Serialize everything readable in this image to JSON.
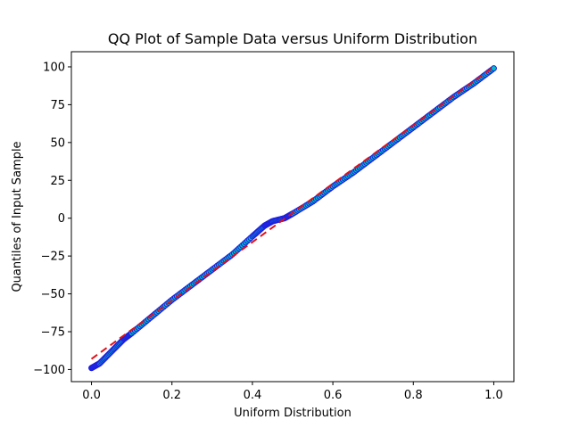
{
  "chart_data": {
    "type": "scatter",
    "title": "QQ Plot of Sample Data versus Uniform Distribution",
    "xlabel": "Uniform Distribution",
    "ylabel": "Quantiles of Input Sample",
    "xlim": [
      -0.05,
      1.05
    ],
    "ylim": [
      -108,
      110
    ],
    "xticks": [
      0.0,
      0.2,
      0.4,
      0.6,
      0.8,
      1.0
    ],
    "xtick_labels": [
      "0.0",
      "0.2",
      "0.4",
      "0.6",
      "0.8",
      "1.0"
    ],
    "yticks": [
      -100,
      -75,
      -50,
      -25,
      0,
      25,
      50,
      75,
      100
    ],
    "ytick_labels": [
      "−100",
      "−75",
      "−50",
      "−25",
      "0",
      "25",
      "50",
      "75",
      "100"
    ],
    "grid": false,
    "colors": {
      "marker_fill": "#00BFBF",
      "marker_edge": "#1f1fe0",
      "reference_line": "#e0101a"
    },
    "series": [
      {
        "kind": "points",
        "x": [
          0.0,
          0.02,
          0.05,
          0.08,
          0.1,
          0.15,
          0.2,
          0.25,
          0.3,
          0.35,
          0.4,
          0.43,
          0.45,
          0.48,
          0.5,
          0.55,
          0.6,
          0.65,
          0.7,
          0.75,
          0.8,
          0.85,
          0.9,
          0.95,
          1.0
        ],
        "y": [
          -99,
          -96,
          -88,
          -80,
          -76,
          -65,
          -54,
          -44,
          -34,
          -24,
          -12,
          -5,
          -2,
          0,
          3,
          11,
          21,
          30,
          40,
          50,
          60,
          70,
          80,
          89,
          99
        ]
      },
      {
        "kind": "reference-line",
        "x": [
          0.0,
          1.0
        ],
        "y": [
          -93,
          100
        ]
      }
    ]
  }
}
